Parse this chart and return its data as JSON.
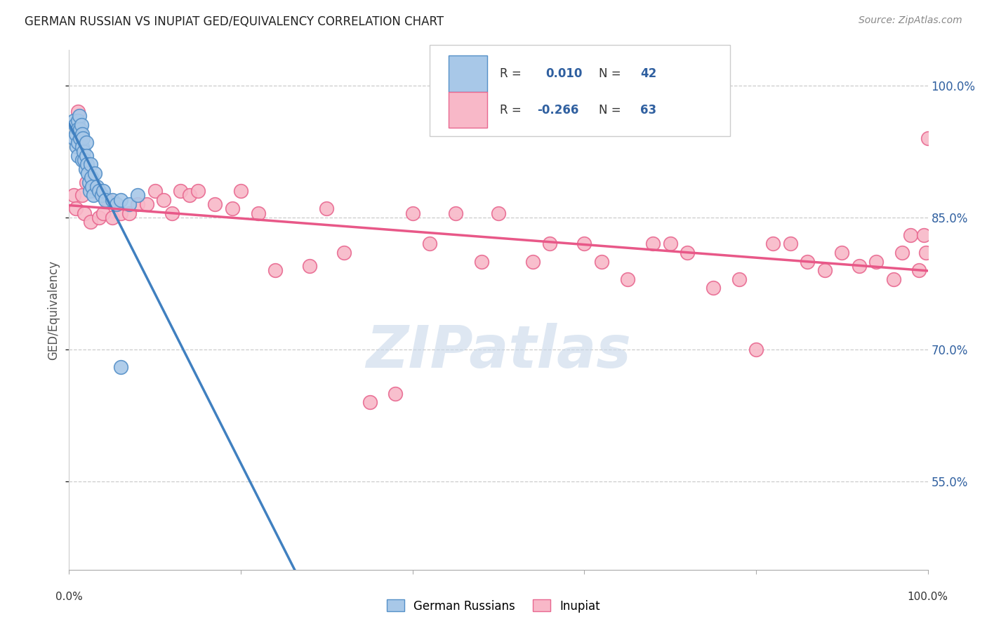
{
  "title": "GERMAN RUSSIAN VS INUPIAT GED/EQUIVALENCY CORRELATION CHART",
  "source": "Source: ZipAtlas.com",
  "ylabel": "GED/Equivalency",
  "legend_label1": "German Russians",
  "legend_label2": "Inupiat",
  "r1": 0.01,
  "n1": 42,
  "r2": -0.266,
  "n2": 63,
  "color_blue_fill": "#a8c8e8",
  "color_blue_edge": "#5590c8",
  "color_pink_fill": "#f8b8c8",
  "color_pink_edge": "#e86890",
  "color_blue_line": "#4080c0",
  "color_pink_line": "#e85888",
  "color_blue_text": "#3060a0",
  "watermark_color": "#c8d8ea",
  "xlim": [
    0.0,
    1.0
  ],
  "ylim": [
    0.45,
    1.04
  ],
  "yticks": [
    0.55,
    0.7,
    0.85,
    1.0
  ],
  "ytick_labels": [
    "55.0%",
    "70.0%",
    "85.0%",
    "100.0%"
  ],
  "gr_x": [
    0.005,
    0.005,
    0.007,
    0.008,
    0.009,
    0.01,
    0.01,
    0.01,
    0.01,
    0.012,
    0.013,
    0.013,
    0.014,
    0.015,
    0.015,
    0.015,
    0.016,
    0.017,
    0.018,
    0.019,
    0.02,
    0.02,
    0.021,
    0.022,
    0.023,
    0.024,
    0.025,
    0.026,
    0.027,
    0.028,
    0.03,
    0.032,
    0.035,
    0.038,
    0.04,
    0.042,
    0.05,
    0.055,
    0.06,
    0.07,
    0.08,
    0.06
  ],
  "gr_y": [
    0.96,
    0.94,
    0.955,
    0.945,
    0.93,
    0.96,
    0.95,
    0.935,
    0.92,
    0.965,
    0.95,
    0.94,
    0.955,
    0.945,
    0.93,
    0.915,
    0.94,
    0.925,
    0.915,
    0.905,
    0.935,
    0.92,
    0.91,
    0.9,
    0.89,
    0.88,
    0.91,
    0.895,
    0.885,
    0.875,
    0.9,
    0.885,
    0.88,
    0.875,
    0.88,
    0.87,
    0.87,
    0.865,
    0.87,
    0.865,
    0.875,
    0.68
  ],
  "inp_x": [
    0.005,
    0.008,
    0.01,
    0.012,
    0.015,
    0.018,
    0.02,
    0.025,
    0.03,
    0.035,
    0.04,
    0.045,
    0.05,
    0.06,
    0.07,
    0.08,
    0.09,
    0.1,
    0.11,
    0.12,
    0.13,
    0.14,
    0.15,
    0.17,
    0.19,
    0.2,
    0.22,
    0.24,
    0.28,
    0.3,
    0.32,
    0.35,
    0.38,
    0.4,
    0.42,
    0.45,
    0.48,
    0.5,
    0.54,
    0.56,
    0.6,
    0.62,
    0.65,
    0.68,
    0.7,
    0.72,
    0.75,
    0.78,
    0.8,
    0.82,
    0.84,
    0.86,
    0.88,
    0.9,
    0.92,
    0.94,
    0.96,
    0.97,
    0.98,
    0.99,
    0.995,
    0.998,
    1.0
  ],
  "inp_y": [
    0.875,
    0.86,
    0.97,
    0.94,
    0.875,
    0.855,
    0.89,
    0.845,
    0.88,
    0.85,
    0.855,
    0.87,
    0.85,
    0.855,
    0.855,
    0.865,
    0.865,
    0.88,
    0.87,
    0.855,
    0.88,
    0.875,
    0.88,
    0.865,
    0.86,
    0.88,
    0.855,
    0.79,
    0.795,
    0.86,
    0.81,
    0.64,
    0.65,
    0.855,
    0.82,
    0.855,
    0.8,
    0.855,
    0.8,
    0.82,
    0.82,
    0.8,
    0.78,
    0.82,
    0.82,
    0.81,
    0.77,
    0.78,
    0.7,
    0.82,
    0.82,
    0.8,
    0.79,
    0.81,
    0.795,
    0.8,
    0.78,
    0.81,
    0.83,
    0.79,
    0.83,
    0.81,
    0.94
  ],
  "gr_line_x0": 0.0,
  "gr_line_x_switch": 0.33,
  "gr_line_x1": 1.0,
  "inp_line_x0": 0.0,
  "inp_line_x1": 1.0
}
